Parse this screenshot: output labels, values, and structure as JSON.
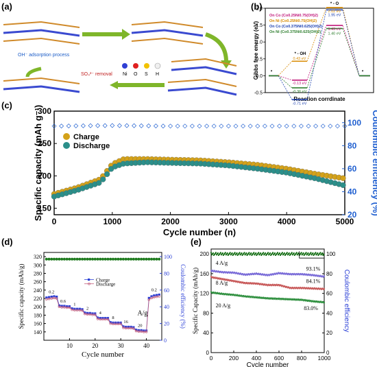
{
  "panels": {
    "a": "(a)",
    "b": "(b)",
    "c": "(c)",
    "d": "(d)",
    "e": "(e)"
  },
  "panel_a": {
    "oh_label": "OH⁻ adsorption process",
    "so4_label": "SO₄²⁻ removal",
    "legend": [
      "Ni",
      "O",
      "S",
      "H"
    ],
    "legend_colors": [
      "#2f3fd4",
      "#e02020",
      "#f2c200",
      "#f0f0f0"
    ]
  },
  "colors": {
    "charge": "#d4a21a",
    "discharge": "#2b8f8a",
    "ce_c": "#1f5fd0",
    "d_charge": "#2a3fd6",
    "d_discharge": "#c05a7a",
    "d_ce": "#1e7a1e",
    "e_4": "#7a6cd8",
    "e_8": "#c85a5a",
    "e_20": "#2e8f3e",
    "e_ce": "#0e6a0e"
  },
  "chart_data": [
    {
      "panel": "b",
      "type": "line",
      "ylabel": "Gibbs free energy (eV)",
      "xlabel": "Reaction corrdinate",
      "ylim": [
        -0.5,
        2.0
      ],
      "yticks": [
        "-0.5",
        "0.0",
        "0.5",
        "1.0",
        "1.5",
        "2.0"
      ],
      "step_labels": [
        "*",
        "* - OH",
        "* - O",
        "*"
      ],
      "series": [
        {
          "name": "On Co (Co0.25Ni0.75(OH)2)",
          "color": "#c0187a",
          "values": [
            0,
            -0.13,
            1.49,
            0
          ]
        },
        {
          "name": "On Ni (Co0.25Ni0.75(OH)2)",
          "color": "#d88a00",
          "values": [
            0,
            0.43,
            2.02,
            0
          ]
        },
        {
          "name": "On Co (Co0.375Ni0.625(OH)2)",
          "color": "#1a3fb0",
          "values": [
            0,
            -0.71,
            1.95,
            0
          ]
        },
        {
          "name": "On Ni (Co0.375Ni0.625(OH)2)",
          "color": "#2f7f2f",
          "values": [
            0,
            -0.36,
            1.4,
            0
          ]
        }
      ],
      "value_labels": [
        "-0.13 eV",
        "0.43 eV",
        "-0.71 eV",
        "-0.36 eV",
        "2.02 eV",
        "1.95 eV",
        "1.49 eV",
        "1.40 eV"
      ]
    },
    {
      "panel": "c",
      "type": "scatter",
      "xlabel": "Cycle number (n)",
      "ylabel": "Specific capacity (mAh g⁻¹)",
      "y2label": "Coulombic efficiency (%)",
      "xlim": [
        0,
        5000
      ],
      "ylim": [
        140,
        300
      ],
      "y2lim": [
        20,
        110
      ],
      "xticks": [
        "0",
        "1000",
        "2000",
        "3000",
        "4000",
        "5000"
      ],
      "yticks": [
        "150",
        "200",
        "250",
        "300"
      ],
      "y2ticks": [
        "20",
        "40",
        "60",
        "80",
        "100"
      ],
      "legend": [
        "Charge",
        "Discharge"
      ],
      "series": [
        {
          "name": "Charge",
          "x": [
            0,
            400,
            800,
            1000,
            1200,
            1600,
            2000,
            2500,
            3000,
            3500,
            4000,
            4500,
            5000
          ],
          "values": [
            172,
            182,
            195,
            218,
            226,
            226,
            225,
            224,
            221,
            217,
            211,
            203,
            196
          ]
        },
        {
          "name": "Discharge",
          "x": [
            0,
            400,
            800,
            1000,
            1200,
            1600,
            2000,
            2500,
            3000,
            3500,
            4000,
            4500,
            5000
          ],
          "values": [
            168,
            178,
            190,
            213,
            219,
            221,
            220,
            219,
            216,
            211,
            205,
            196,
            185
          ]
        },
        {
          "name": "Coulombic efficiency",
          "x": [
            0,
            1000,
            2000,
            3000,
            4000,
            5000
          ],
          "values": [
            97,
            97.5,
            97,
            97,
            97,
            97
          ]
        }
      ]
    },
    {
      "panel": "d",
      "type": "line",
      "xlabel": "Cycle number",
      "ylabel": "Specific capacity (mAh/g)",
      "y2label": "Coulombic efficiency (%)",
      "xlim": [
        0,
        46
      ],
      "ylim": [
        120,
        330
      ],
      "y2lim": [
        0,
        105
      ],
      "xticks": [
        "10",
        "20",
        "30",
        "40"
      ],
      "yticks": [
        "140",
        "160",
        "180",
        "200",
        "220",
        "240",
        "260",
        "280",
        "300",
        "320"
      ],
      "y2ticks": [
        "0",
        "20",
        "40",
        "60",
        "80",
        "100"
      ],
      "legend": [
        "Charge",
        "Discharge"
      ],
      "unit": "A/g",
      "rate_labels": [
        "0.2",
        "0.6",
        "1",
        "2",
        "4",
        "8",
        "16",
        "20",
        "0.2"
      ],
      "series": [
        {
          "name": "Charge",
          "x": [
            1,
            2,
            3,
            4,
            5,
            6,
            7,
            8,
            9,
            10,
            11,
            12,
            13,
            14,
            15,
            16,
            17,
            18,
            19,
            20,
            21,
            22,
            23,
            24,
            25,
            26,
            27,
            28,
            29,
            30,
            31,
            32,
            33,
            34,
            35,
            36,
            37,
            38,
            39,
            40,
            41,
            42,
            43,
            44,
            45
          ],
          "values": [
            222,
            223,
            224,
            225,
            224,
            203,
            202,
            202,
            201,
            201,
            196,
            195,
            195,
            195,
            194,
            186,
            185,
            185,
            184,
            184,
            174,
            173,
            173,
            173,
            173,
            163,
            162,
            162,
            162,
            162,
            153,
            152,
            152,
            152,
            151,
            145,
            144,
            144,
            143,
            143,
            221,
            225,
            227,
            228,
            229
          ]
        },
        {
          "name": "Discharge",
          "x": [
            1,
            2,
            3,
            4,
            5,
            6,
            7,
            8,
            9,
            10,
            11,
            12,
            13,
            14,
            15,
            16,
            17,
            18,
            19,
            20,
            21,
            22,
            23,
            24,
            25,
            26,
            27,
            28,
            29,
            30,
            31,
            32,
            33,
            34,
            35,
            36,
            37,
            38,
            39,
            40,
            41,
            42,
            43,
            44,
            45
          ],
          "values": [
            218,
            219,
            220,
            221,
            220,
            200,
            199,
            199,
            198,
            198,
            193,
            192,
            192,
            192,
            191,
            183,
            182,
            182,
            181,
            181,
            171,
            170,
            170,
            170,
            170,
            160,
            159,
            159,
            159,
            159,
            150,
            149,
            149,
            149,
            148,
            142,
            141,
            141,
            140,
            140,
            217,
            221,
            223,
            224,
            225
          ]
        },
        {
          "name": "Coulombic efficiency",
          "x": [
            1,
            5,
            10,
            15,
            20,
            25,
            30,
            35,
            40,
            45
          ],
          "values": [
            97,
            97,
            97,
            97,
            97,
            97,
            97,
            97,
            97,
            97
          ]
        }
      ]
    },
    {
      "panel": "e",
      "type": "scatter",
      "xlabel": "Cycle number",
      "ylabel": "Specific Capacity (mAh/g)",
      "y2label": "Coulombic efficiency",
      "xlim": [
        0,
        1000
      ],
      "ylim": [
        0,
        210
      ],
      "y2lim": [
        0,
        105
      ],
      "xticks": [
        "0",
        "200",
        "400",
        "600",
        "800",
        "1000"
      ],
      "yticks": [
        "0",
        "40",
        "80",
        "120",
        "160",
        "200"
      ],
      "y2ticks": [
        "0",
        "20",
        "40",
        "60",
        "80",
        "100"
      ],
      "series": [
        {
          "name": "4 A/g",
          "x": [
            0,
            100,
            200,
            300,
            400,
            500,
            600,
            700,
            800,
            900,
            1000
          ],
          "values": [
            166,
            163,
            162,
            158,
            160,
            157,
            161,
            159,
            159,
            157,
            154
          ],
          "retention": "93.1%"
        },
        {
          "name": "8 A/g",
          "x": [
            0,
            100,
            200,
            300,
            400,
            500,
            600,
            700,
            800,
            900,
            1000
          ],
          "values": [
            153,
            149,
            145,
            141,
            140,
            137,
            137,
            131,
            131,
            130,
            129
          ],
          "retention": "84.1%"
        },
        {
          "name": "20 A/g",
          "x": [
            0,
            100,
            200,
            300,
            400,
            500,
            600,
            700,
            800,
            900,
            1000
          ],
          "values": [
            122,
            119,
            117,
            114,
            112,
            110,
            109,
            108,
            107,
            104,
            102
          ],
          "retention": "83.0%"
        },
        {
          "name": "Coulombic efficiency",
          "x": [
            0,
            1000
          ],
          "values": [
            100,
            100
          ]
        }
      ],
      "labels": [
        "4 A/g",
        "8 A/g",
        "20 A/g"
      ],
      "retentions": [
        "93.1%",
        "84.1%",
        "83.0%"
      ]
    }
  ]
}
